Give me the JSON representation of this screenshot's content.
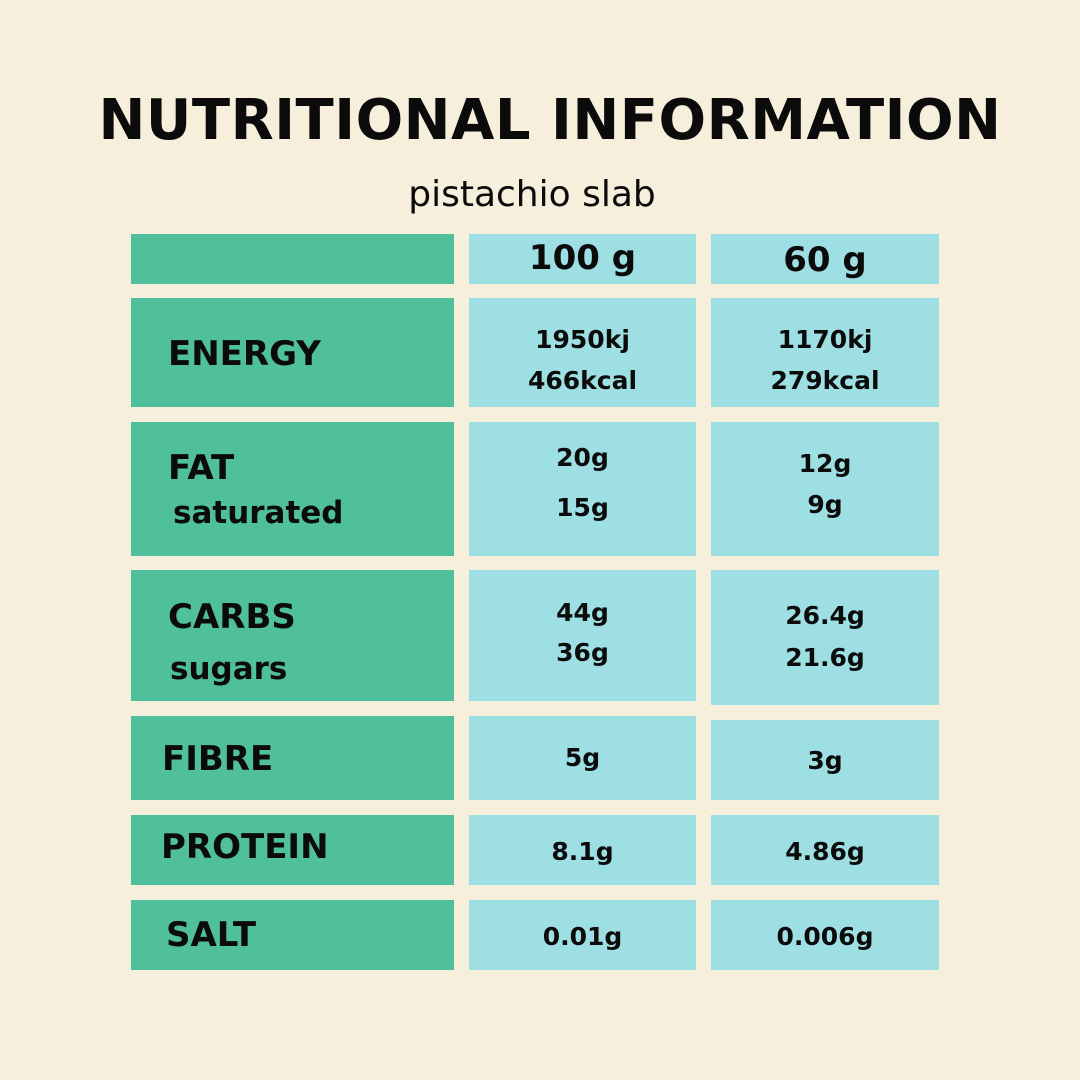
{
  "title": "NUTRITIONAL INFORMATION",
  "subtitle": "pistachio slab",
  "columns": [
    "100 g",
    "60 g"
  ],
  "colors": {
    "background": "#f5efdc",
    "label_cells": "#50bf9c",
    "value_cells": "#9ddfe3"
  },
  "rows": {
    "energy": {
      "label": "ENERGY",
      "col100": [
        "1950kj",
        "466kcal"
      ],
      "col60": [
        "1170kj",
        "279kcal"
      ]
    },
    "fat": {
      "label": "FAT",
      "sublabel": "saturated",
      "col100": [
        "20g",
        "15g"
      ],
      "col60": [
        "12g",
        "9g"
      ]
    },
    "carbs": {
      "label": "CARBS",
      "sublabel": "sugars",
      "col100": [
        "44g",
        "36g"
      ],
      "col60": [
        "26.4g",
        "21.6g"
      ]
    },
    "fibre": {
      "label": "FIBRE",
      "col100": [
        "5g"
      ],
      "col60": [
        "3g"
      ]
    },
    "protein": {
      "label": "PROTEIN",
      "col100": [
        "8.1g"
      ],
      "col60": [
        "4.86g"
      ]
    },
    "salt": {
      "label": "SALT",
      "col100": [
        "0.01g"
      ],
      "col60": [
        "0.006g"
      ]
    }
  }
}
